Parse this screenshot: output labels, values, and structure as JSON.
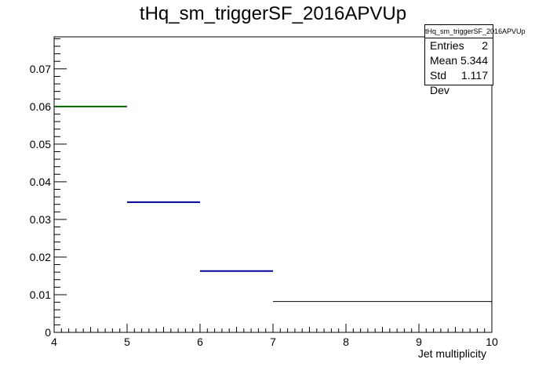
{
  "chart_data": {
    "type": "bar",
    "title": "tHq_sm_triggerSF_2016APVUp",
    "xlabel": "Jet multiplicity",
    "ylabel": "",
    "xlim": [
      4,
      10
    ],
    "ylim": [
      0,
      0.0785
    ],
    "grid": false,
    "x_ticks": [
      "4",
      "5",
      "6",
      "7",
      "8",
      "9",
      "10"
    ],
    "y_ticks": [
      "0",
      "0.01",
      "0.02",
      "0.03",
      "0.04",
      "0.05",
      "0.06",
      "0.07"
    ],
    "bins": [
      {
        "x_low": 4,
        "x_high": 5,
        "value": 0.06,
        "color": "#006400"
      },
      {
        "x_low": 5,
        "x_high": 6,
        "value": 0.0346,
        "color": "#000099"
      },
      {
        "x_low": 6,
        "x_high": 7,
        "value": 0.0163,
        "color": "#000099"
      },
      {
        "x_low": 7,
        "x_high": 10,
        "value": 0.0082,
        "color": "#000000"
      }
    ],
    "stats": {
      "name": "tHq_sm_triggerSF_2016APVUp",
      "entries_label": "Entries",
      "entries": "2",
      "mean_label": "Mean",
      "mean": "5.344",
      "std_label": "Std Dev",
      "std": "1.117"
    }
  }
}
